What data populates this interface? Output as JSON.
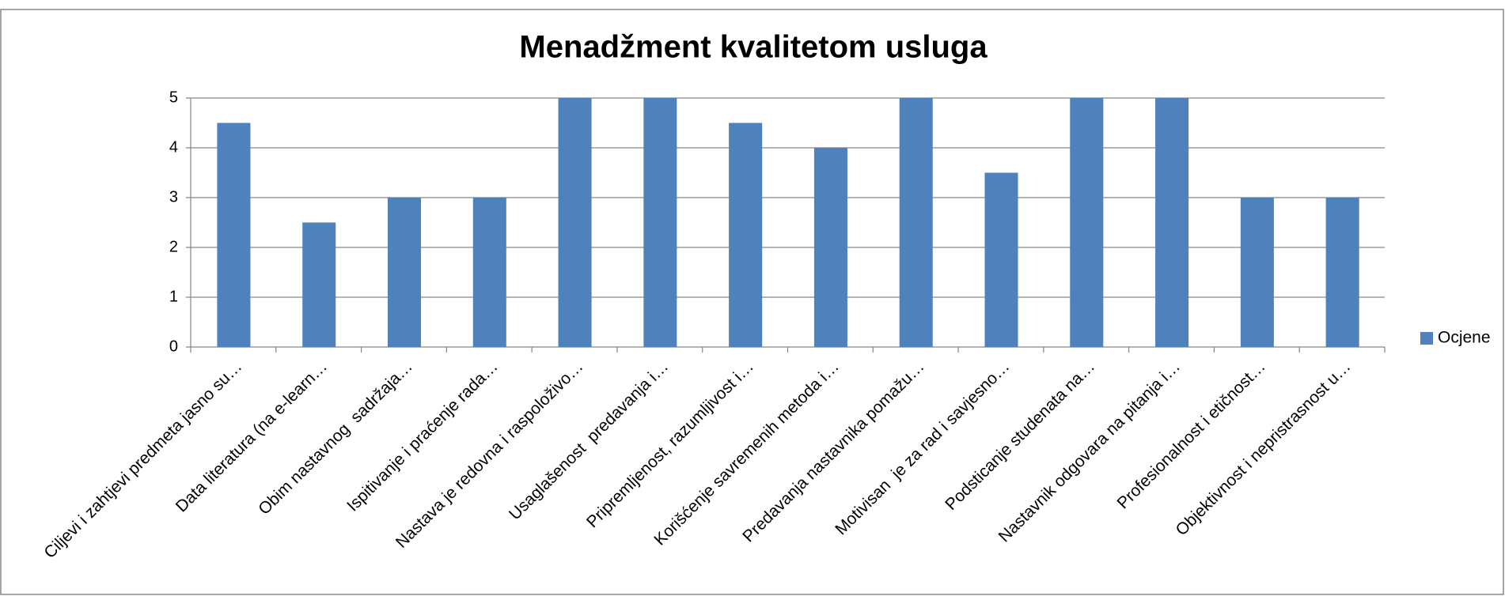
{
  "chart_data": {
    "type": "bar",
    "title": "Menadžment kvalitetom usluga",
    "categories": [
      "Ciljevi i zahtjevi predmeta jasno su…",
      "Data literatura (na e-learn…",
      "Obim nastavnog  sadržaja…",
      "Ispitivanje i praćenje rada…",
      "Nastava je redovna i raspoloživo…",
      "Usaglašenost  predavanja i…",
      "Pripremljenost, razumljivost i…",
      "Korišćenje savremenih metoda i…",
      "Predavanja nastavnika pomažu…",
      "Motivisan  je za rad i savjesno…",
      "Podsticanje studenata na…",
      "Nastavnik odgovara na pitanja i…",
      "Profesionalnost i etičnost…",
      "Objektivnost i nepristrasnost u…"
    ],
    "series": [
      {
        "name": "Ocjene",
        "color": "#4f81bd",
        "values": [
          4.5,
          2.5,
          3,
          3,
          5,
          5,
          4.5,
          4,
          5,
          3.5,
          5,
          5,
          3,
          3
        ]
      }
    ],
    "ylim": [
      0,
      5
    ],
    "yticks": [
      0,
      1,
      2,
      3,
      4,
      5
    ],
    "grid": true,
    "legend": "right"
  }
}
